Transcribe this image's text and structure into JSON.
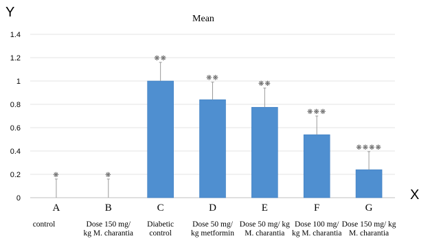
{
  "chart_data": {
    "type": "bar",
    "title": "Mean",
    "ylabel": "Y",
    "xlabel": "X",
    "ylim": [
      0,
      1.4
    ],
    "yticks": [
      0,
      0.2,
      0.4,
      0.6,
      0.8,
      1,
      1.2,
      1.4
    ],
    "grid": true,
    "bar_color": "#4f8fd0",
    "categories": [
      "A",
      "B",
      "C",
      "D",
      "E",
      "F",
      "G"
    ],
    "category_descriptions": [
      [
        "control"
      ],
      [
        "Dose 150 mg/",
        "kg M. charantia"
      ],
      [
        "Diabetic",
        "control"
      ],
      [
        "Dose 50 mg/",
        "kg metformin"
      ],
      [
        "Dose 50 mg/ kg",
        "M. charantia"
      ],
      [
        "Dose 100 mg/",
        "kg M. charantia"
      ],
      [
        "Dose 150 mg/ kg",
        "M. charantia"
      ]
    ],
    "values": [
      0,
      0,
      1.0,
      0.84,
      0.775,
      0.54,
      0.24
    ],
    "error_upper": [
      0.16,
      0.16,
      0.16,
      0.15,
      0.165,
      0.16,
      0.155
    ],
    "significance": [
      "❋",
      "❋",
      "❋❋",
      "❋❋",
      "❋❋",
      "❋❋❋",
      "❋❋❋❋"
    ]
  }
}
